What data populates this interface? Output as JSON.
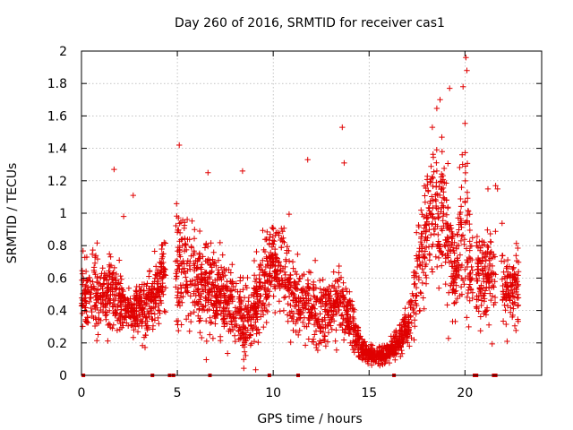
{
  "chart_data": {
    "type": "scatter",
    "title": "Day 260 of 2016, SRMTID for receiver cas1",
    "xlabel": "GPS time / hours",
    "ylabel": "SRMTID / TECUs",
    "xlim": [
      0,
      24
    ],
    "ylim": [
      0,
      2
    ],
    "x_ticks": [
      0,
      5,
      10,
      15,
      20
    ],
    "x_tick_labels": [
      "0",
      "5",
      "10",
      "15",
      "20"
    ],
    "y_ticks": [
      0,
      0.2,
      0.4,
      0.6,
      0.8,
      1,
      1.2,
      1.4,
      1.6,
      1.8,
      2
    ],
    "y_tick_labels": [
      "0",
      "0.2",
      "0.4",
      "0.6",
      "0.8",
      "1",
      "1.2",
      "1.4",
      "1.6",
      "1.8",
      "2"
    ],
    "grid": true,
    "marker": "plus",
    "color": "#e00000",
    "envelope": [
      [
        0.0,
        0.45,
        0.22
      ],
      [
        0.5,
        0.52,
        0.2
      ],
      [
        1.0,
        0.48,
        0.2
      ],
      [
        1.5,
        0.5,
        0.22
      ],
      [
        2.0,
        0.45,
        0.16
      ],
      [
        2.5,
        0.4,
        0.12
      ],
      [
        3.0,
        0.4,
        0.14
      ],
      [
        3.5,
        0.42,
        0.18
      ],
      [
        4.0,
        0.55,
        0.2
      ],
      [
        4.3,
        0.6,
        0.25
      ],
      [
        5.0,
        0.65,
        0.3
      ],
      [
        5.5,
        0.7,
        0.3
      ],
      [
        6.0,
        0.6,
        0.28
      ],
      [
        6.5,
        0.55,
        0.25
      ],
      [
        7.0,
        0.5,
        0.22
      ],
      [
        7.5,
        0.48,
        0.22
      ],
      [
        8.0,
        0.42,
        0.22
      ],
      [
        8.5,
        0.3,
        0.2
      ],
      [
        9.0,
        0.4,
        0.22
      ],
      [
        9.5,
        0.6,
        0.25
      ],
      [
        10.0,
        0.7,
        0.22
      ],
      [
        10.5,
        0.65,
        0.25
      ],
      [
        11.0,
        0.5,
        0.22
      ],
      [
        11.5,
        0.45,
        0.2
      ],
      [
        12.0,
        0.4,
        0.2
      ],
      [
        12.5,
        0.38,
        0.18
      ],
      [
        13.0,
        0.4,
        0.2
      ],
      [
        13.5,
        0.45,
        0.22
      ],
      [
        14.0,
        0.35,
        0.18
      ],
      [
        14.5,
        0.18,
        0.08
      ],
      [
        15.0,
        0.12,
        0.05
      ],
      [
        15.5,
        0.12,
        0.05
      ],
      [
        16.0,
        0.14,
        0.05
      ],
      [
        16.5,
        0.2,
        0.07
      ],
      [
        17.0,
        0.3,
        0.12
      ],
      [
        17.5,
        0.6,
        0.3
      ],
      [
        18.0,
        0.9,
        0.3
      ],
      [
        18.5,
        1.0,
        0.35
      ],
      [
        19.0,
        0.95,
        0.35
      ],
      [
        19.5,
        0.6,
        0.25
      ],
      [
        20.0,
        1.0,
        0.5
      ],
      [
        20.3,
        0.6,
        0.3
      ],
      [
        20.8,
        0.6,
        0.2
      ],
      [
        21.3,
        0.65,
        0.25
      ],
      [
        21.8,
        0.55,
        0.28
      ],
      [
        22.3,
        0.5,
        0.2
      ],
      [
        22.8,
        0.55,
        0.2
      ]
    ],
    "data_gaps": [
      [
        4.4,
        4.9
      ],
      [
        20.4,
        20.55
      ],
      [
        21.6,
        21.9
      ]
    ],
    "outliers": [
      [
        1.7,
        1.27
      ],
      [
        2.2,
        0.98
      ],
      [
        2.7,
        1.11
      ],
      [
        5.1,
        1.42
      ],
      [
        6.6,
        1.25
      ],
      [
        8.4,
        1.26
      ],
      [
        11.8,
        1.33
      ],
      [
        13.6,
        1.53
      ],
      [
        13.7,
        1.31
      ],
      [
        18.3,
        1.53
      ],
      [
        18.7,
        1.7
      ],
      [
        19.2,
        1.77
      ],
      [
        19.9,
        1.78
      ],
      [
        20.05,
        1.96
      ],
      [
        20.1,
        1.88
      ],
      [
        21.6,
        1.17
      ],
      [
        21.7,
        1.15
      ],
      [
        21.2,
        1.15
      ]
    ],
    "baseline_marks": [
      0.1,
      3.7,
      4.6,
      4.8,
      6.7,
      9.8,
      11.3,
      16.3,
      20.5,
      20.6,
      21.5,
      21.6
    ],
    "generated_points": 3000,
    "seed": 2016260
  }
}
